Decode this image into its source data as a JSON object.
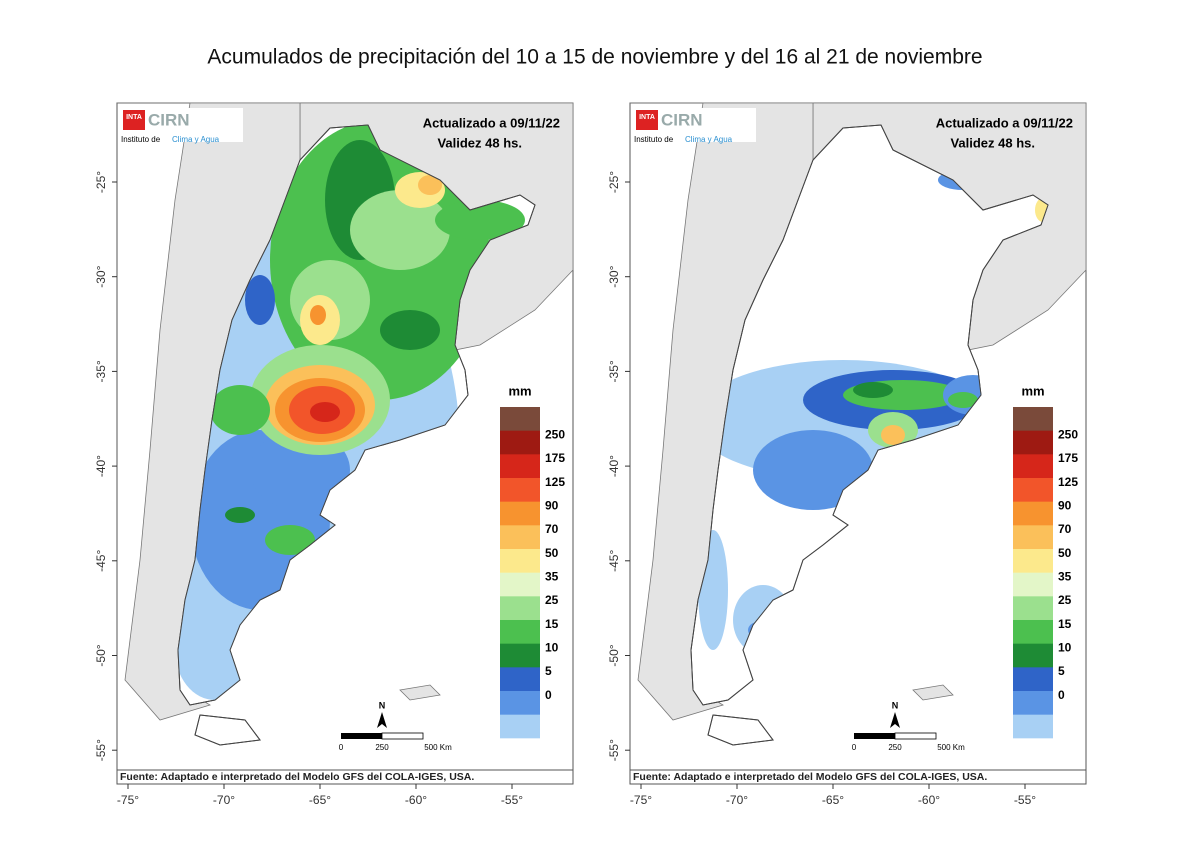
{
  "title": "Acumulados de precipitación del 10 a 15 de noviembre y del 16 al 21 de noviembre",
  "legend_colors": [
    "#7a4a3a",
    "#9e1a12",
    "#d6261a",
    "#f2552a",
    "#f7932f",
    "#fbc05a",
    "#fce98c",
    "#e3f6c8",
    "#9be08e",
    "#4cc04f",
    "#1e8b35",
    "#2f64c8",
    "#5a94e4",
    "#a8d0f4",
    "#ffffff"
  ],
  "panels": [
    {
      "logo": {
        "inta": "INTA",
        "cirn": "CIRN",
        "institute": "Instituto de",
        "institute_highlight": "Clima y Agua"
      },
      "updated": "Actualizado a 09/11/22",
      "validity": "Validez 48 hs.",
      "legend": {
        "unit": "mm",
        "labels": [
          250,
          175,
          125,
          90,
          70,
          50,
          35,
          25,
          15,
          10,
          5,
          0
        ]
      },
      "scale": {
        "north": "N",
        "ticks": [
          "0",
          "250",
          "500 Km"
        ]
      },
      "source": "Fuente: Adaptado e interpretado del Modelo GFS del COLA-IGES, USA.",
      "x_labels": [
        "-75°",
        "-70°",
        "-65°",
        "-60°",
        "-55°"
      ],
      "y_labels": [
        "-25°",
        "-30°",
        "-35°",
        "-40°",
        "-45°",
        "-50°",
        "-55°"
      ]
    },
    {
      "logo": {
        "inta": "INTA",
        "cirn": "CIRN",
        "institute": "Instituto de",
        "institute_highlight": "Clima y Agua"
      },
      "updated": "Actualizado a 09/11/22",
      "validity": "Validez 48 hs.",
      "legend": {
        "unit": "mm",
        "labels": [
          250,
          175,
          125,
          90,
          70,
          50,
          35,
          25,
          15,
          10,
          5,
          0
        ]
      },
      "scale": {
        "north": "N",
        "ticks": [
          "0",
          "250",
          "500 Km"
        ]
      },
      "source": "Fuente: Adaptado e interpretado del Modelo GFS del COLA-IGES, USA.",
      "x_labels": [
        "-75°",
        "-70°",
        "-65°",
        "-60°",
        "-55°"
      ],
      "y_labels": [
        "-25°",
        "-30°",
        "-35°",
        "-40°",
        "-45°",
        "-50°",
        "-55°"
      ]
    }
  ]
}
